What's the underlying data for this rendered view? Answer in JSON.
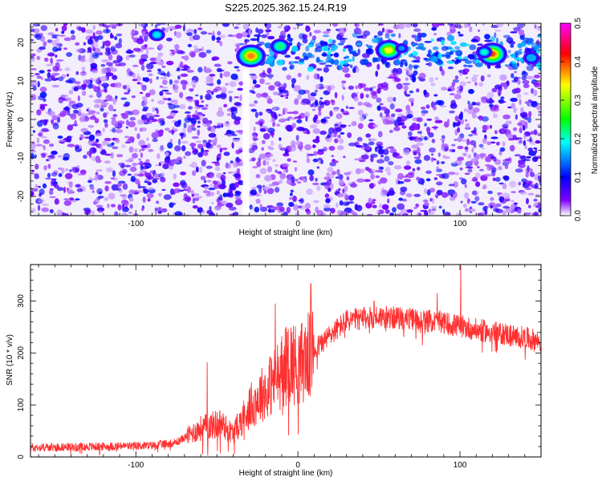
{
  "title": "S225.2025.362.15.24.R19",
  "chart_data": [
    {
      "type": "heatmap",
      "xlabel": "Height of straight line (km)",
      "ylabel": "Frequency (Hz)",
      "xlim": [
        -165,
        150
      ],
      "ylim": [
        -25,
        25
      ],
      "xticks": [
        -100,
        0,
        100
      ],
      "yticks": [
        -20,
        -10,
        0,
        10,
        20
      ],
      "colorbar": {
        "label": "Normalized spectral amplitude",
        "range": [
          0,
          0.5
        ],
        "ticks": [
          0,
          0.1,
          0.2,
          0.3,
          0.4,
          0.5
        ],
        "colors": [
          "#ffffff",
          "#8000ff",
          "#0000ff",
          "#00ffff",
          "#00ff00",
          "#ffff00",
          "#ff0000",
          "#ff00ff"
        ]
      },
      "features": {
        "band_freq_hz": 17,
        "band_start_km": -35,
        "gap_center_km": -32,
        "hotspots": [
          {
            "x": -29,
            "y": 16.5,
            "v": 0.38
          },
          {
            "x": 56,
            "y": 18,
            "v": 0.34
          },
          {
            "x": 120,
            "y": 17,
            "v": 0.4
          },
          {
            "x": -11,
            "y": 19,
            "v": 0.22
          },
          {
            "x": 115,
            "y": 17.5,
            "v": 0.2
          },
          {
            "x": -87,
            "y": 22,
            "v": 0.18
          },
          {
            "x": 64,
            "y": 18.5,
            "v": 0.15
          },
          {
            "x": 144,
            "y": 16,
            "v": 0.16
          }
        ]
      }
    },
    {
      "type": "line",
      "xlabel": "Height of straight line (km)",
      "ylabel": "SNR (10 * v/v)",
      "xlim": [
        -165,
        150
      ],
      "ylim": [
        0,
        370
      ],
      "xticks": [
        -100,
        0,
        100
      ],
      "yticks": [
        0,
        100,
        200,
        300
      ],
      "color": "#ff3030",
      "envelope": {
        "x": [
          -165,
          -120,
          -90,
          -75,
          -60,
          -48,
          -40,
          -30,
          -15,
          -5,
          0,
          10,
          20,
          30,
          50,
          70,
          90,
          110,
          130,
          150
        ],
        "y": [
          18,
          20,
          22,
          28,
          55,
          65,
          45,
          95,
          145,
          185,
          175,
          205,
          235,
          262,
          270,
          265,
          258,
          245,
          235,
          222
        ]
      },
      "spikes": [
        {
          "x": 100.5,
          "y": 368
        },
        {
          "x": 8,
          "y": 333
        },
        {
          "x": -14,
          "y": 295
        },
        {
          "x": 47,
          "y": 300
        },
        {
          "x": 86,
          "y": 315
        },
        {
          "x": -56,
          "y": 182
        }
      ]
    }
  ]
}
